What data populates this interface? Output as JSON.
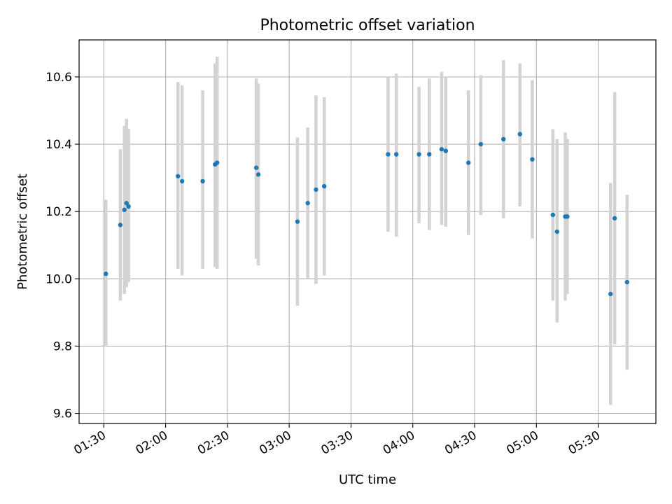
{
  "chart_data": {
    "type": "scatter",
    "title": "Photometric offset variation",
    "xlabel": "UTC time",
    "ylabel": "Photometric offset",
    "xlim": [
      "01:18",
      "05:58"
    ],
    "ylim": [
      9.57,
      10.71
    ],
    "x_ticks": [
      "01:30",
      "02:00",
      "02:30",
      "03:00",
      "03:30",
      "04:00",
      "04:30",
      "05:00",
      "05:30"
    ],
    "y_ticks": [
      9.6,
      9.8,
      10.0,
      10.2,
      10.4,
      10.6
    ],
    "y_tick_labels": [
      "9.6",
      "9.8",
      "10.0",
      "10.2",
      "10.4",
      "10.6"
    ],
    "grid": true,
    "colors": {
      "point": "#1f77b4",
      "errorbar": "#d3d3d3",
      "grid": "#b0b0b0"
    },
    "points": [
      {
        "x": "01:31",
        "y": 10.015,
        "err_low": 9.8,
        "err_high": 10.235
      },
      {
        "x": "01:38",
        "y": 10.16,
        "err_low": 9.935,
        "err_high": 10.385
      },
      {
        "x": "01:40",
        "y": 10.205,
        "err_low": 9.955,
        "err_high": 10.455
      },
      {
        "x": "01:41",
        "y": 10.225,
        "err_low": 9.975,
        "err_high": 10.475
      },
      {
        "x": "01:42",
        "y": 10.215,
        "err_low": 9.99,
        "err_high": 10.445
      },
      {
        "x": "02:06",
        "y": 10.305,
        "err_low": 10.03,
        "err_high": 10.585
      },
      {
        "x": "02:08",
        "y": 10.29,
        "err_low": 10.01,
        "err_high": 10.575
      },
      {
        "x": "02:18",
        "y": 10.29,
        "err_low": 10.03,
        "err_high": 10.56
      },
      {
        "x": "02:24",
        "y": 10.34,
        "err_low": 10.035,
        "err_high": 10.64
      },
      {
        "x": "02:25",
        "y": 10.345,
        "err_low": 10.03,
        "err_high": 10.66
      },
      {
        "x": "02:44",
        "y": 10.33,
        "err_low": 10.06,
        "err_high": 10.595
      },
      {
        "x": "02:45",
        "y": 10.31,
        "err_low": 10.04,
        "err_high": 10.58
      },
      {
        "x": "03:04",
        "y": 10.17,
        "err_low": 9.92,
        "err_high": 10.42
      },
      {
        "x": "03:09",
        "y": 10.225,
        "err_low": 10.0,
        "err_high": 10.45
      },
      {
        "x": "03:13",
        "y": 10.265,
        "err_low": 9.985,
        "err_high": 10.545
      },
      {
        "x": "03:17",
        "y": 10.275,
        "err_low": 10.01,
        "err_high": 10.54
      },
      {
        "x": "03:48",
        "y": 10.37,
        "err_low": 10.14,
        "err_high": 10.6
      },
      {
        "x": "03:52",
        "y": 10.37,
        "err_low": 10.125,
        "err_high": 10.61
      },
      {
        "x": "04:03",
        "y": 10.37,
        "err_low": 10.165,
        "err_high": 10.57
      },
      {
        "x": "04:08",
        "y": 10.37,
        "err_low": 10.145,
        "err_high": 10.595
      },
      {
        "x": "04:14",
        "y": 10.385,
        "err_low": 10.16,
        "err_high": 10.615
      },
      {
        "x": "04:16",
        "y": 10.38,
        "err_low": 10.155,
        "err_high": 10.6
      },
      {
        "x": "04:27",
        "y": 10.345,
        "err_low": 10.13,
        "err_high": 10.56
      },
      {
        "x": "04:33",
        "y": 10.4,
        "err_low": 10.19,
        "err_high": 10.605
      },
      {
        "x": "04:44",
        "y": 10.415,
        "err_low": 10.18,
        "err_high": 10.65
      },
      {
        "x": "04:52",
        "y": 10.43,
        "err_low": 10.215,
        "err_high": 10.64
      },
      {
        "x": "04:58",
        "y": 10.355,
        "err_low": 10.12,
        "err_high": 10.59
      },
      {
        "x": "05:08",
        "y": 10.19,
        "err_low": 9.935,
        "err_high": 10.445
      },
      {
        "x": "05:10",
        "y": 10.14,
        "err_low": 9.87,
        "err_high": 10.415
      },
      {
        "x": "05:14",
        "y": 10.185,
        "err_low": 9.935,
        "err_high": 10.435
      },
      {
        "x": "05:15",
        "y": 10.185,
        "err_low": 9.955,
        "err_high": 10.415
      },
      {
        "x": "05:36",
        "y": 9.955,
        "err_low": 9.625,
        "err_high": 10.285
      },
      {
        "x": "05:38",
        "y": 10.18,
        "err_low": 9.805,
        "err_high": 10.555
      },
      {
        "x": "05:44",
        "y": 9.99,
        "err_low": 9.73,
        "err_high": 10.25
      }
    ]
  }
}
